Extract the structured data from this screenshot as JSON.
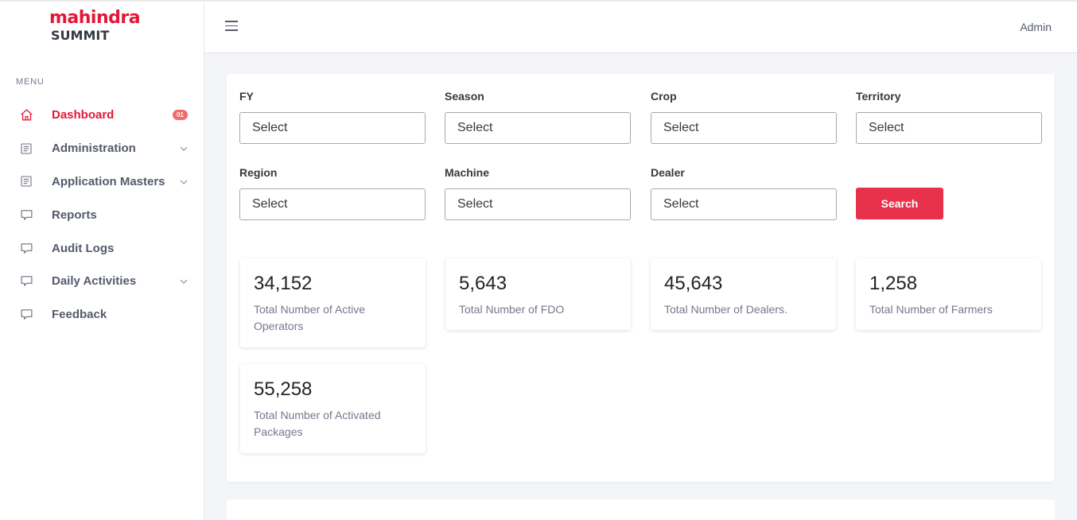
{
  "brand": {
    "logo_top": "mahindra",
    "logo_bottom": "SUMMIT"
  },
  "sidebar": {
    "menu_title": "MENU",
    "items": [
      {
        "label": "Dashboard",
        "icon": "home-icon",
        "badge": "01",
        "active": true
      },
      {
        "label": "Administration",
        "icon": "document-icon",
        "expandable": true
      },
      {
        "label": "Application Masters",
        "icon": "document-icon",
        "expandable": true
      },
      {
        "label": "Reports",
        "icon": "comment-icon"
      },
      {
        "label": "Audit Logs",
        "icon": "comment-icon"
      },
      {
        "label": "Daily Activities",
        "icon": "comment-icon",
        "expandable": true
      },
      {
        "label": "Feedback",
        "icon": "comment-icon"
      }
    ]
  },
  "header": {
    "user": "Admin"
  },
  "filters": {
    "fy": {
      "label": "FY",
      "value": "Select"
    },
    "season": {
      "label": "Season",
      "value": "Select"
    },
    "crop": {
      "label": "Crop",
      "value": "Select"
    },
    "territory": {
      "label": "Territory",
      "value": "Select"
    },
    "region": {
      "label": "Region",
      "value": "Select"
    },
    "machine": {
      "label": "Machine",
      "value": "Select"
    },
    "dealer": {
      "label": "Dealer",
      "value": "Select"
    },
    "search_label": "Search"
  },
  "stats": [
    {
      "value": "34,152",
      "label": "Total Number of Active Operators"
    },
    {
      "value": "5,643",
      "label": "Total Number of FDO"
    },
    {
      "value": "45,643",
      "label": "Total Number of Dealers."
    },
    {
      "value": "1,258",
      "label": "Total Number of Farmers"
    },
    {
      "value": "55,258",
      "label": "Total Number of Activated Packages"
    }
  ],
  "colors": {
    "brand_red": "#e31837",
    "button_red": "#e8314b",
    "badge_red": "#f46a6a"
  }
}
